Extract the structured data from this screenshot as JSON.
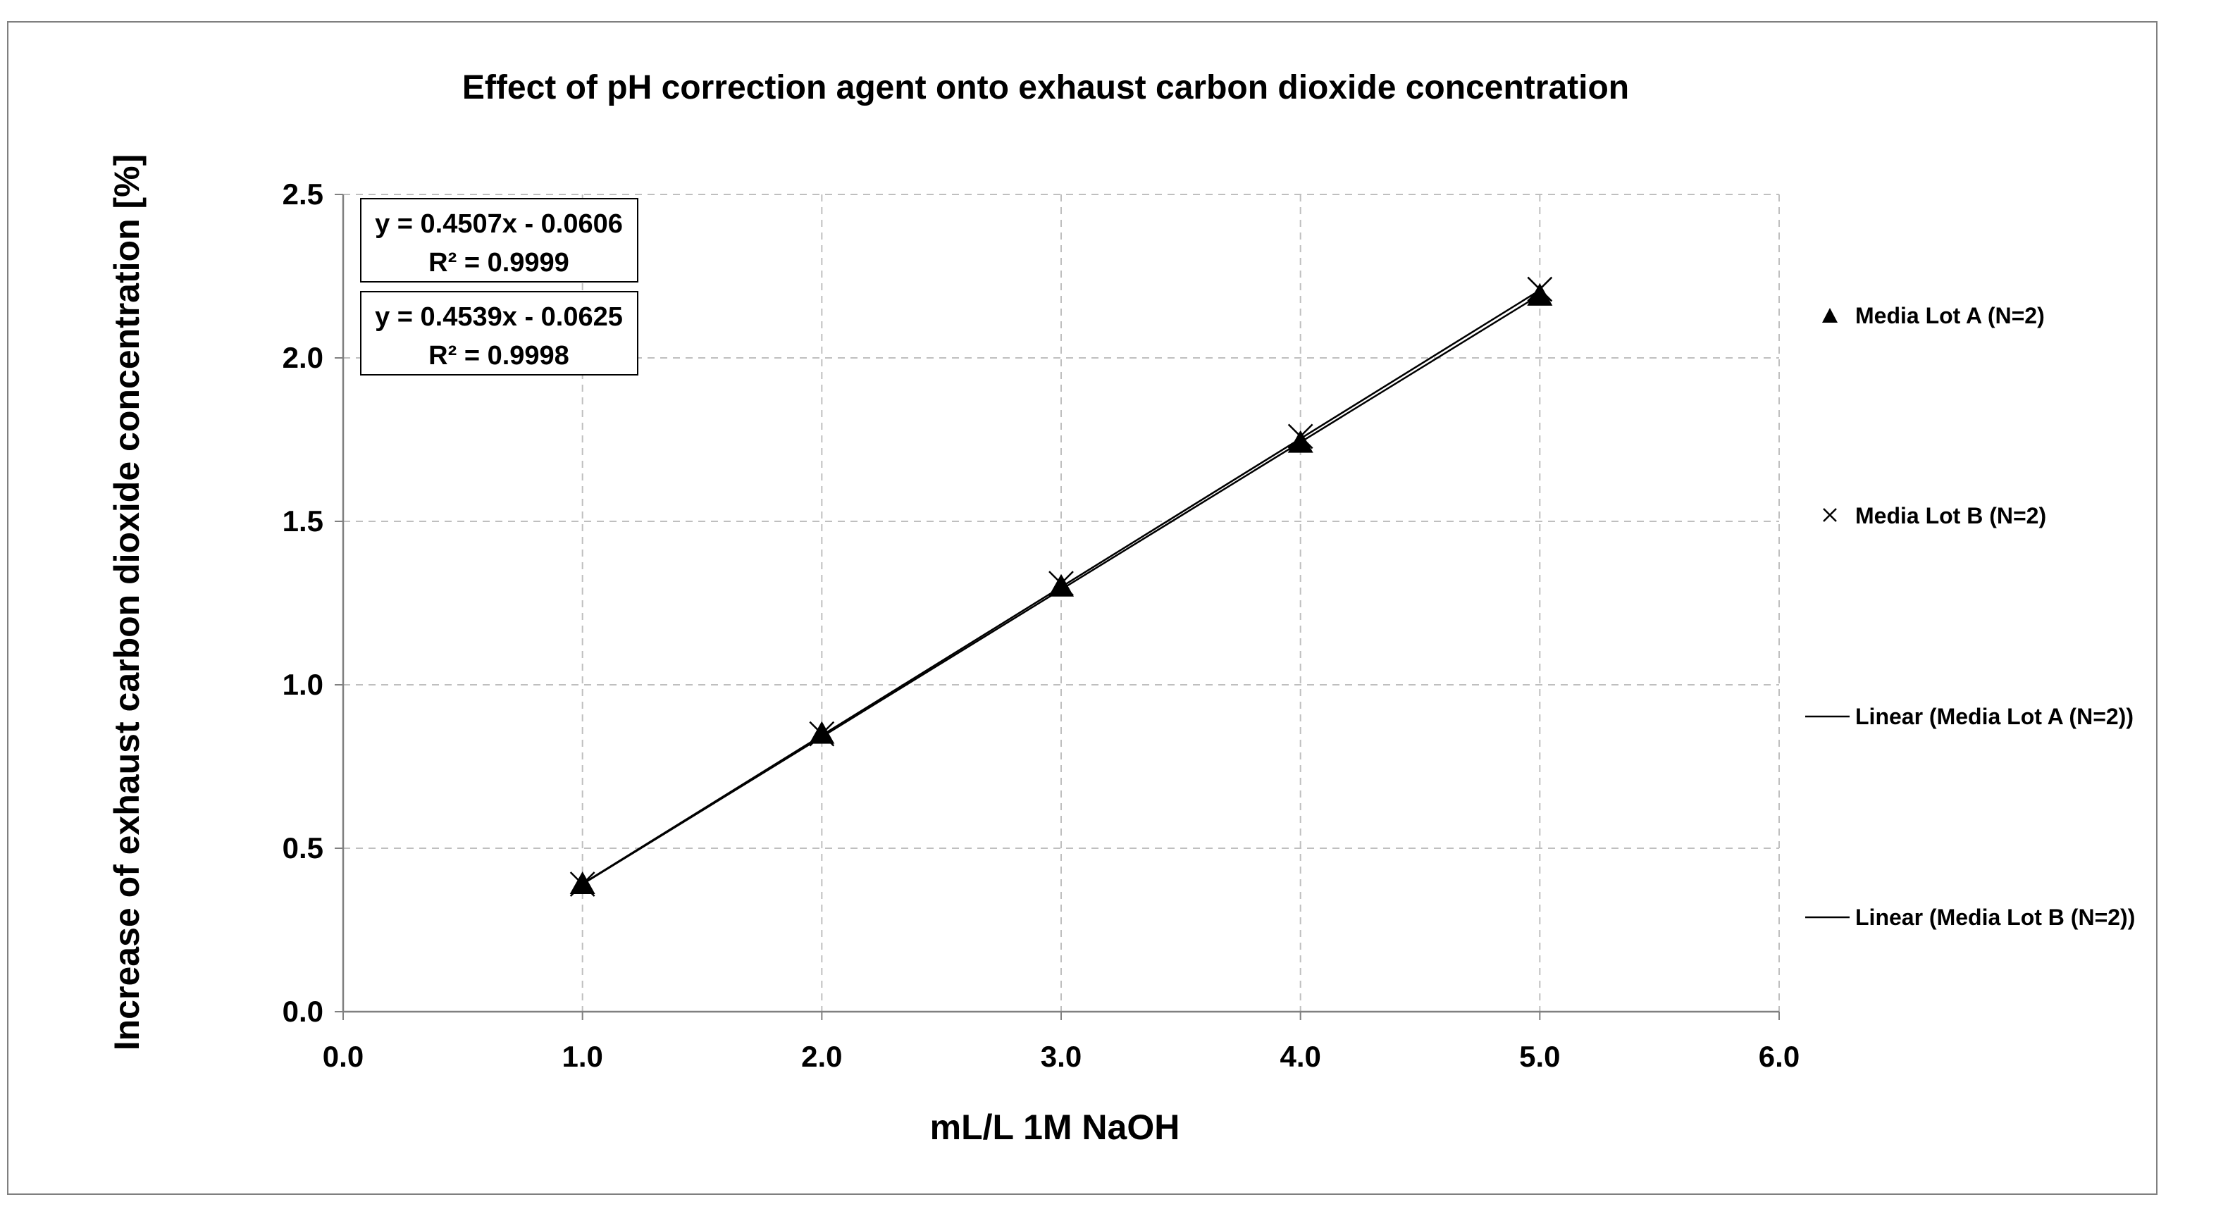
{
  "chart_data": {
    "type": "scatter",
    "title": "Effect of pH correction agent onto exhaust carbon dioxide concentration",
    "xlabel": "mL/L 1M NaOH",
    "ylabel": "Increase of exhaust carbon dioxide concentration [%]",
    "xlim": [
      0,
      6
    ],
    "ylim": [
      0,
      2.5
    ],
    "x_ticks": [
      "0.0",
      "1.0",
      "2.0",
      "3.0",
      "4.0",
      "5.0",
      "6.0"
    ],
    "y_ticks": [
      "0.0",
      "0.5",
      "1.0",
      "1.5",
      "2.0",
      "2.5"
    ],
    "grid": true,
    "legend_position": "right",
    "series": [
      {
        "name": "Media Lot A (N=2)",
        "marker": "triangle",
        "x": [
          1,
          2,
          3,
          4,
          5
        ],
        "y": [
          0.39,
          0.85,
          1.3,
          1.74,
          2.19
        ]
      },
      {
        "name": "Media Lot B (N=2)",
        "marker": "x",
        "x": [
          1,
          2,
          3,
          4,
          5
        ],
        "y": [
          0.39,
          0.85,
          1.31,
          1.76,
          2.21
        ]
      }
    ],
    "trendlines": [
      {
        "name": "Linear (Media Lot A (N=2))",
        "slope": 0.4507,
        "intercept": -0.0606,
        "equation": "y = 0.4507x - 0.0606",
        "r2": "R² = 0.9999"
      },
      {
        "name": "Linear (Media Lot B (N=2))",
        "slope": 0.4539,
        "intercept": -0.0625,
        "equation": "y = 0.4539x - 0.0625",
        "r2": "R² = 0.9998"
      }
    ],
    "colors": {
      "series": "#000000",
      "grid": "#bfbfbf",
      "axis": "#808080",
      "frame": "#7f7f7f"
    }
  }
}
